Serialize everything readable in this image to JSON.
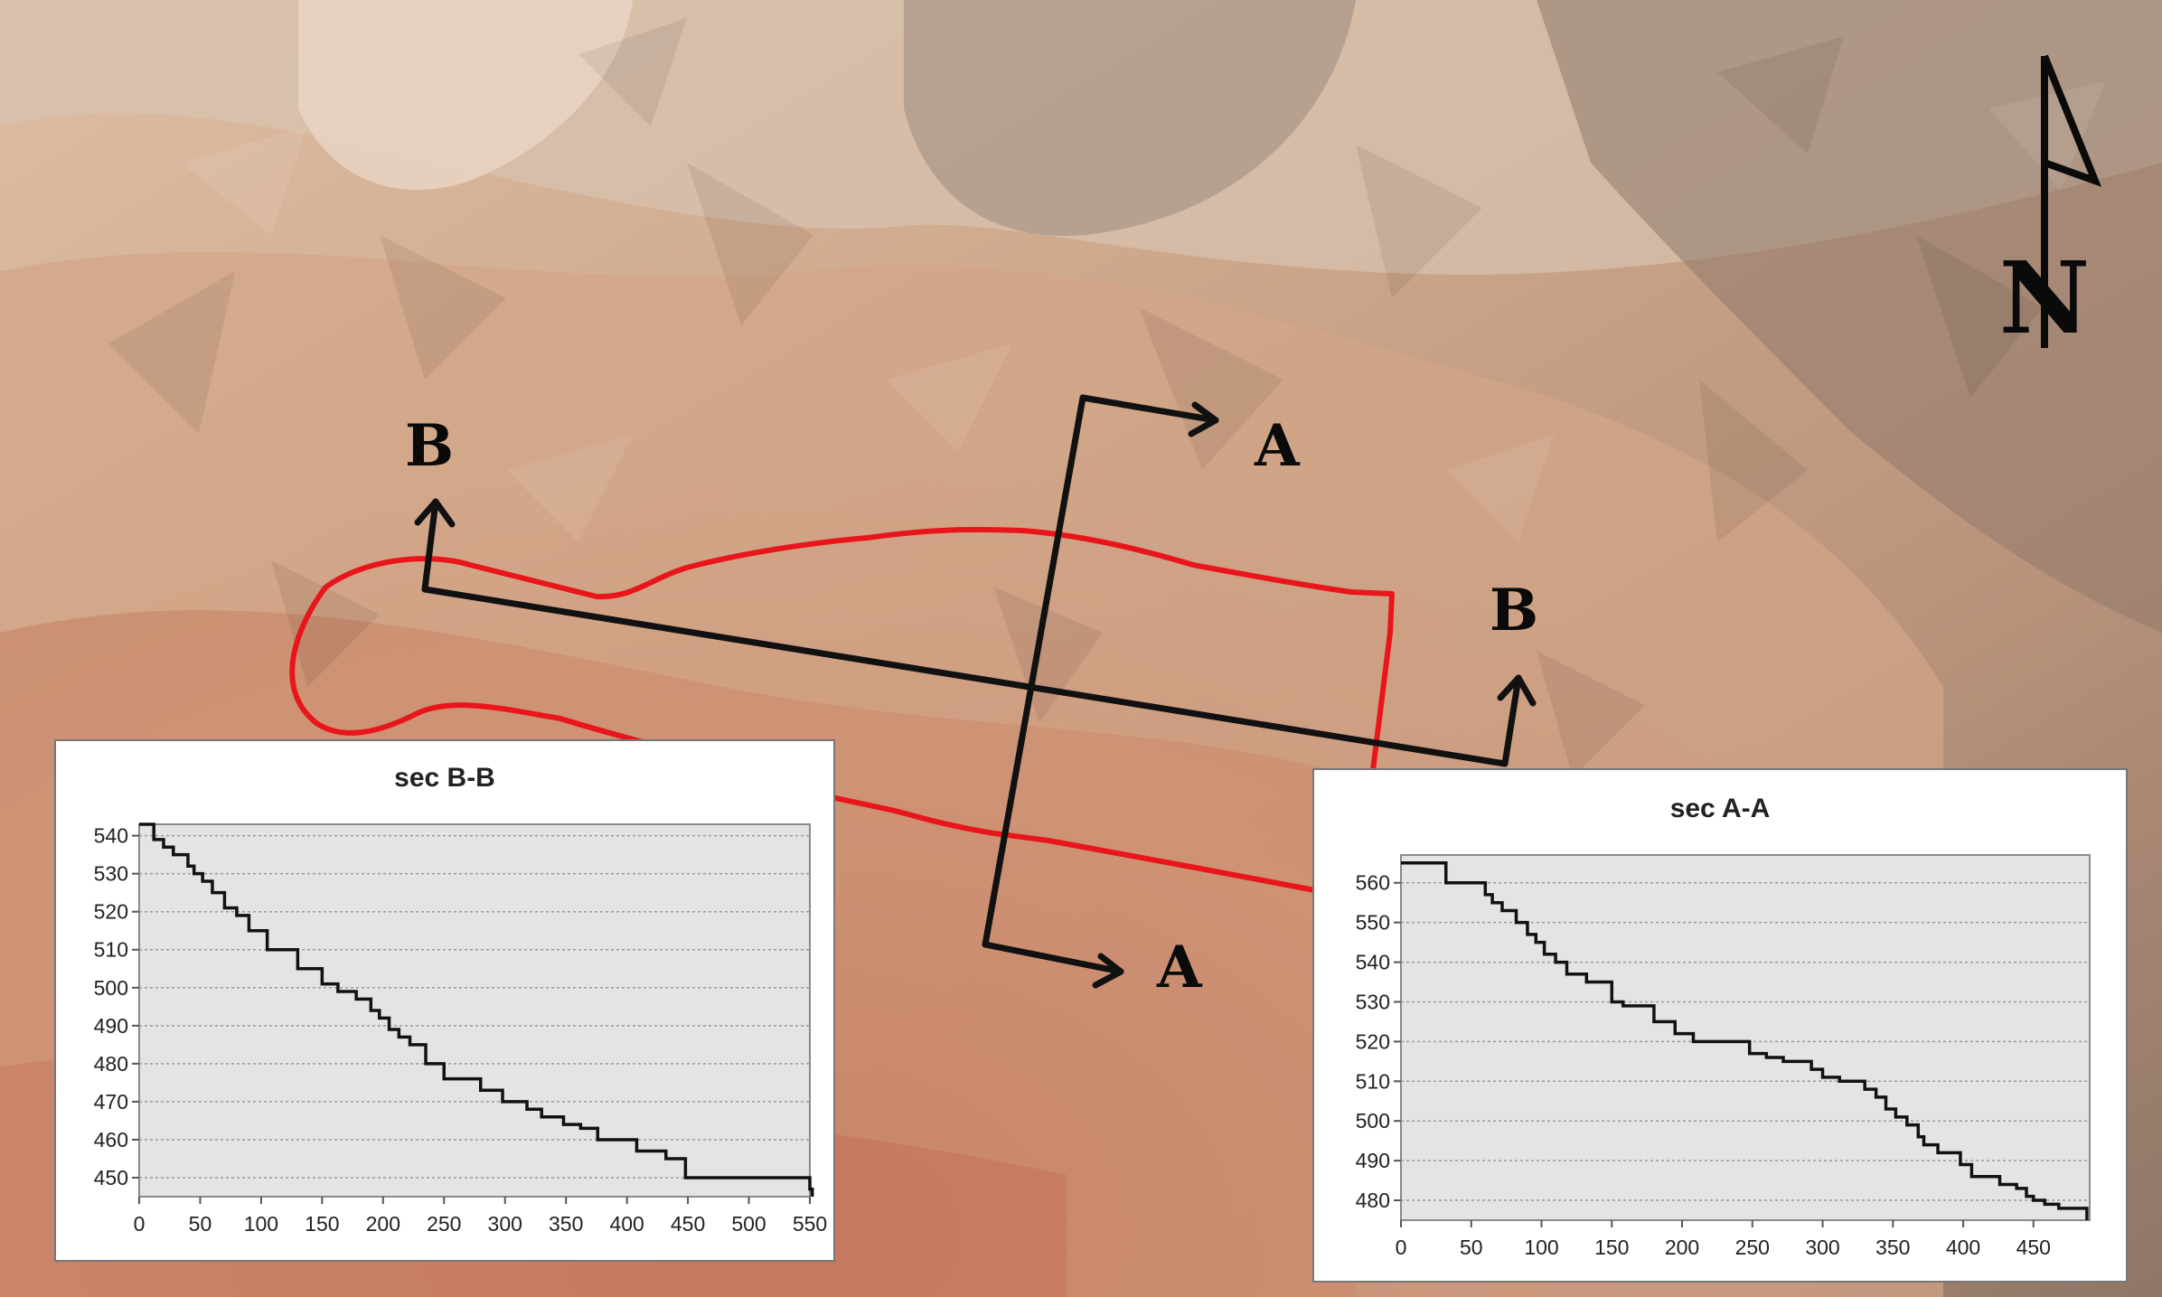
{
  "map": {
    "section_labels": {
      "b_west": "B",
      "a_north": "A",
      "b_east": "B",
      "a_south": "A"
    },
    "north_label": "N",
    "colors": {
      "terrain_light": "#e2c3ab",
      "terrain_mid": "#c9a083",
      "terrain_dark": "#8f7a6c",
      "terrain_lowland": "#c47a5e",
      "boundary": "#e8161b",
      "section_line": "#111111"
    }
  },
  "chart_data": [
    {
      "id": "sec-bb",
      "type": "line",
      "title": "sec B-B",
      "xlabel": "",
      "ylabel": "",
      "xlim": [
        0,
        550
      ],
      "ylim": [
        445,
        543
      ],
      "xticks": [
        0,
        50,
        100,
        150,
        200,
        250,
        300,
        350,
        400,
        450,
        500,
        550
      ],
      "yticks": [
        450,
        460,
        470,
        480,
        490,
        500,
        510,
        520,
        530,
        540
      ],
      "grid": true,
      "step": true,
      "x": [
        0,
        12,
        20,
        28,
        40,
        45,
        52,
        60,
        70,
        80,
        90,
        105,
        130,
        150,
        163,
        178,
        190,
        197,
        205,
        213,
        222,
        235,
        250,
        280,
        298,
        318,
        330,
        348,
        362,
        376,
        408,
        432,
        448,
        482,
        550,
        552
      ],
      "y": [
        543,
        539,
        537,
        535,
        532,
        530,
        528,
        525,
        521,
        519,
        515,
        510,
        505,
        501,
        499,
        497,
        494,
        492,
        489,
        487,
        485,
        480,
        476,
        473,
        470,
        468,
        466,
        464,
        463,
        460,
        457,
        455,
        450,
        450,
        447,
        445
      ]
    },
    {
      "id": "sec-aa",
      "type": "line",
      "title": "sec A-A",
      "xlabel": "",
      "ylabel": "",
      "xlim": [
        0,
        490
      ],
      "ylim": [
        475,
        567
      ],
      "xticks": [
        0,
        50,
        100,
        150,
        200,
        250,
        300,
        350,
        400,
        450
      ],
      "yticks": [
        480,
        490,
        500,
        510,
        520,
        530,
        540,
        550,
        560
      ],
      "grid": true,
      "step": true,
      "x": [
        0,
        32,
        60,
        65,
        72,
        82,
        90,
        96,
        102,
        110,
        118,
        132,
        150,
        158,
        180,
        195,
        208,
        225,
        248,
        260,
        272,
        292,
        300,
        312,
        330,
        338,
        345,
        352,
        360,
        368,
        372,
        382,
        398,
        406,
        426,
        438,
        445,
        450,
        458,
        468,
        486,
        488
      ],
      "y": [
        565,
        560,
        557,
        555,
        553,
        550,
        547,
        545,
        542,
        540,
        537,
        535,
        530,
        529,
        525,
        522,
        520,
        520,
        517,
        516,
        515,
        513,
        511,
        510,
        508,
        506,
        503,
        501,
        499,
        496,
        494,
        492,
        489,
        486,
        484,
        483,
        481,
        480,
        479,
        478,
        478,
        475
      ]
    }
  ]
}
